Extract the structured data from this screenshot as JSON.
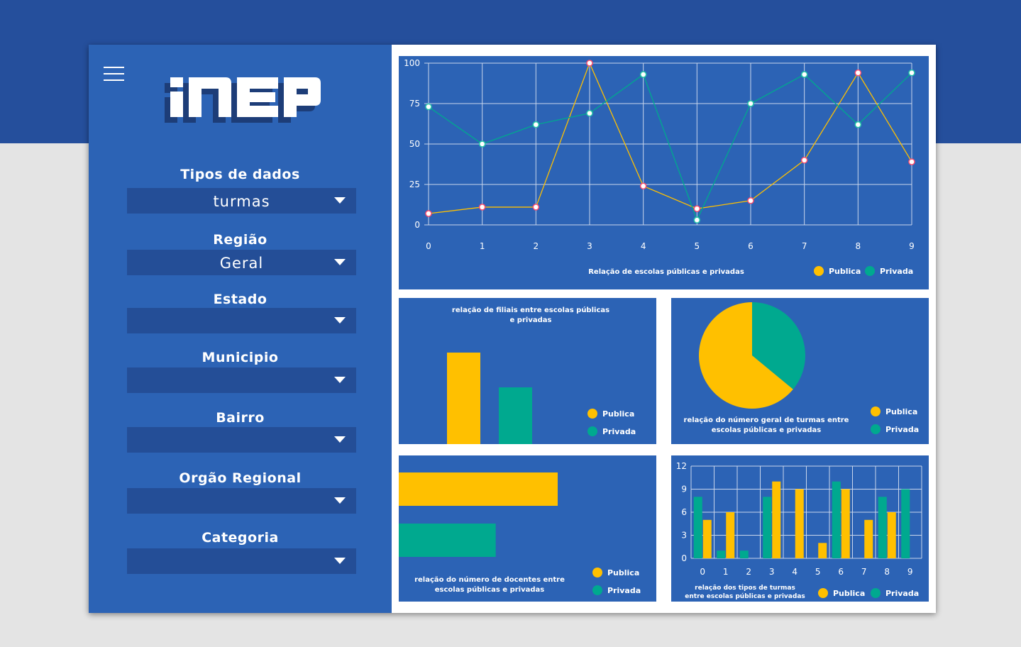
{
  "sidebar": {
    "filters": [
      {
        "label": "Tipos de dados",
        "value": "turmas"
      },
      {
        "label": "Região",
        "value": "Geral"
      },
      {
        "label": "Estado",
        "value": ""
      },
      {
        "label": "Municipio",
        "value": ""
      },
      {
        "label": "Bairro",
        "value": ""
      },
      {
        "label": "Orgão Regional",
        "value": ""
      },
      {
        "label": "Categoria",
        "value": ""
      }
    ]
  },
  "logo": {
    "text": "INEP"
  },
  "colors": {
    "publica": "#ffc000",
    "privada": "#00a98f",
    "panel": "#2c63b5",
    "dropdown": "#244e97"
  },
  "icons": {
    "menu": "hamburger-icon",
    "dropdown": "caret-down-icon"
  },
  "chart_data": [
    {
      "type": "line",
      "title": "Relação de escolas públicas e privadas",
      "x": [
        0,
        1,
        2,
        3,
        4,
        5,
        6,
        7,
        8,
        9
      ],
      "series": [
        {
          "name": "Publica",
          "values": [
            7,
            11,
            11,
            100,
            24,
            10,
            15,
            40,
            94,
            39
          ]
        },
        {
          "name": "Privada",
          "values": [
            73,
            50,
            62,
            69,
            93,
            3,
            75,
            93,
            62,
            94
          ]
        }
      ],
      "ylim": [
        0,
        100
      ],
      "yticks": [
        0,
        25,
        50,
        75,
        100
      ],
      "grid": true,
      "legend": "bottom-right"
    },
    {
      "type": "bar",
      "title": "relação de filiais entre escolas públicas e privadas",
      "categories": [
        "Publica",
        "Privada"
      ],
      "values": [
        100,
        62
      ],
      "legend": "right"
    },
    {
      "type": "pie",
      "title": "relação do número geral de turmas entre escolas públicas e privadas",
      "categories": [
        "Publica",
        "Privada"
      ],
      "values": [
        64,
        36
      ],
      "legend": "right"
    },
    {
      "type": "bar",
      "orientation": "horizontal",
      "title": "relação do número de docentes entre escolas públicas e privadas",
      "categories": [
        "Publica",
        "Privada"
      ],
      "values": [
        100,
        61
      ],
      "legend": "right"
    },
    {
      "type": "bar",
      "title": "relação dos tipos de turmas entre escolas públicas e privadas",
      "categories": [
        "0",
        "1",
        "2",
        "3",
        "4",
        "5",
        "6",
        "7",
        "8",
        "9"
      ],
      "series": [
        {
          "name": "Privada",
          "values": [
            8,
            1,
            1,
            8,
            0,
            0,
            10,
            0,
            8,
            9
          ]
        },
        {
          "name": "Publica",
          "values": [
            5,
            6,
            0,
            10,
            9,
            2,
            9,
            5,
            6,
            0
          ]
        }
      ],
      "ylim": [
        0,
        12
      ],
      "yticks": [
        0,
        3,
        6,
        9,
        12
      ],
      "grid": true,
      "legend": "bottom-right"
    }
  ]
}
